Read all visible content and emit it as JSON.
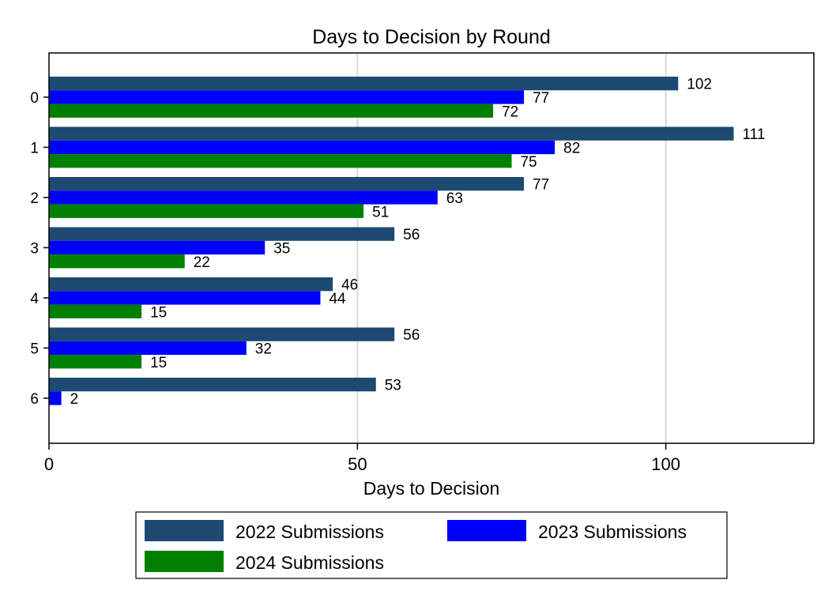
{
  "chart_data": {
    "type": "bar",
    "orientation": "horizontal",
    "title": "Days to Decision by Round",
    "xlabel": "Days to Decision",
    "ylabel": "",
    "xlim": [
      0,
      124
    ],
    "xticks": [
      0,
      50,
      100
    ],
    "categories": [
      "0",
      "1",
      "2",
      "3",
      "4",
      "5",
      "6"
    ],
    "grid": true,
    "legend_position": "bottom",
    "series": [
      {
        "name": "2022 Submissions",
        "color": "#1c4a70",
        "values": [
          102,
          111,
          77,
          56,
          46,
          56,
          53
        ]
      },
      {
        "name": "2023 Submissions",
        "color": "#0000ff",
        "values": [
          77,
          82,
          63,
          35,
          44,
          32,
          2
        ]
      },
      {
        "name": "2024 Submissions",
        "color": "#008000",
        "values": [
          72,
          75,
          51,
          22,
          15,
          15,
          null
        ]
      }
    ]
  }
}
